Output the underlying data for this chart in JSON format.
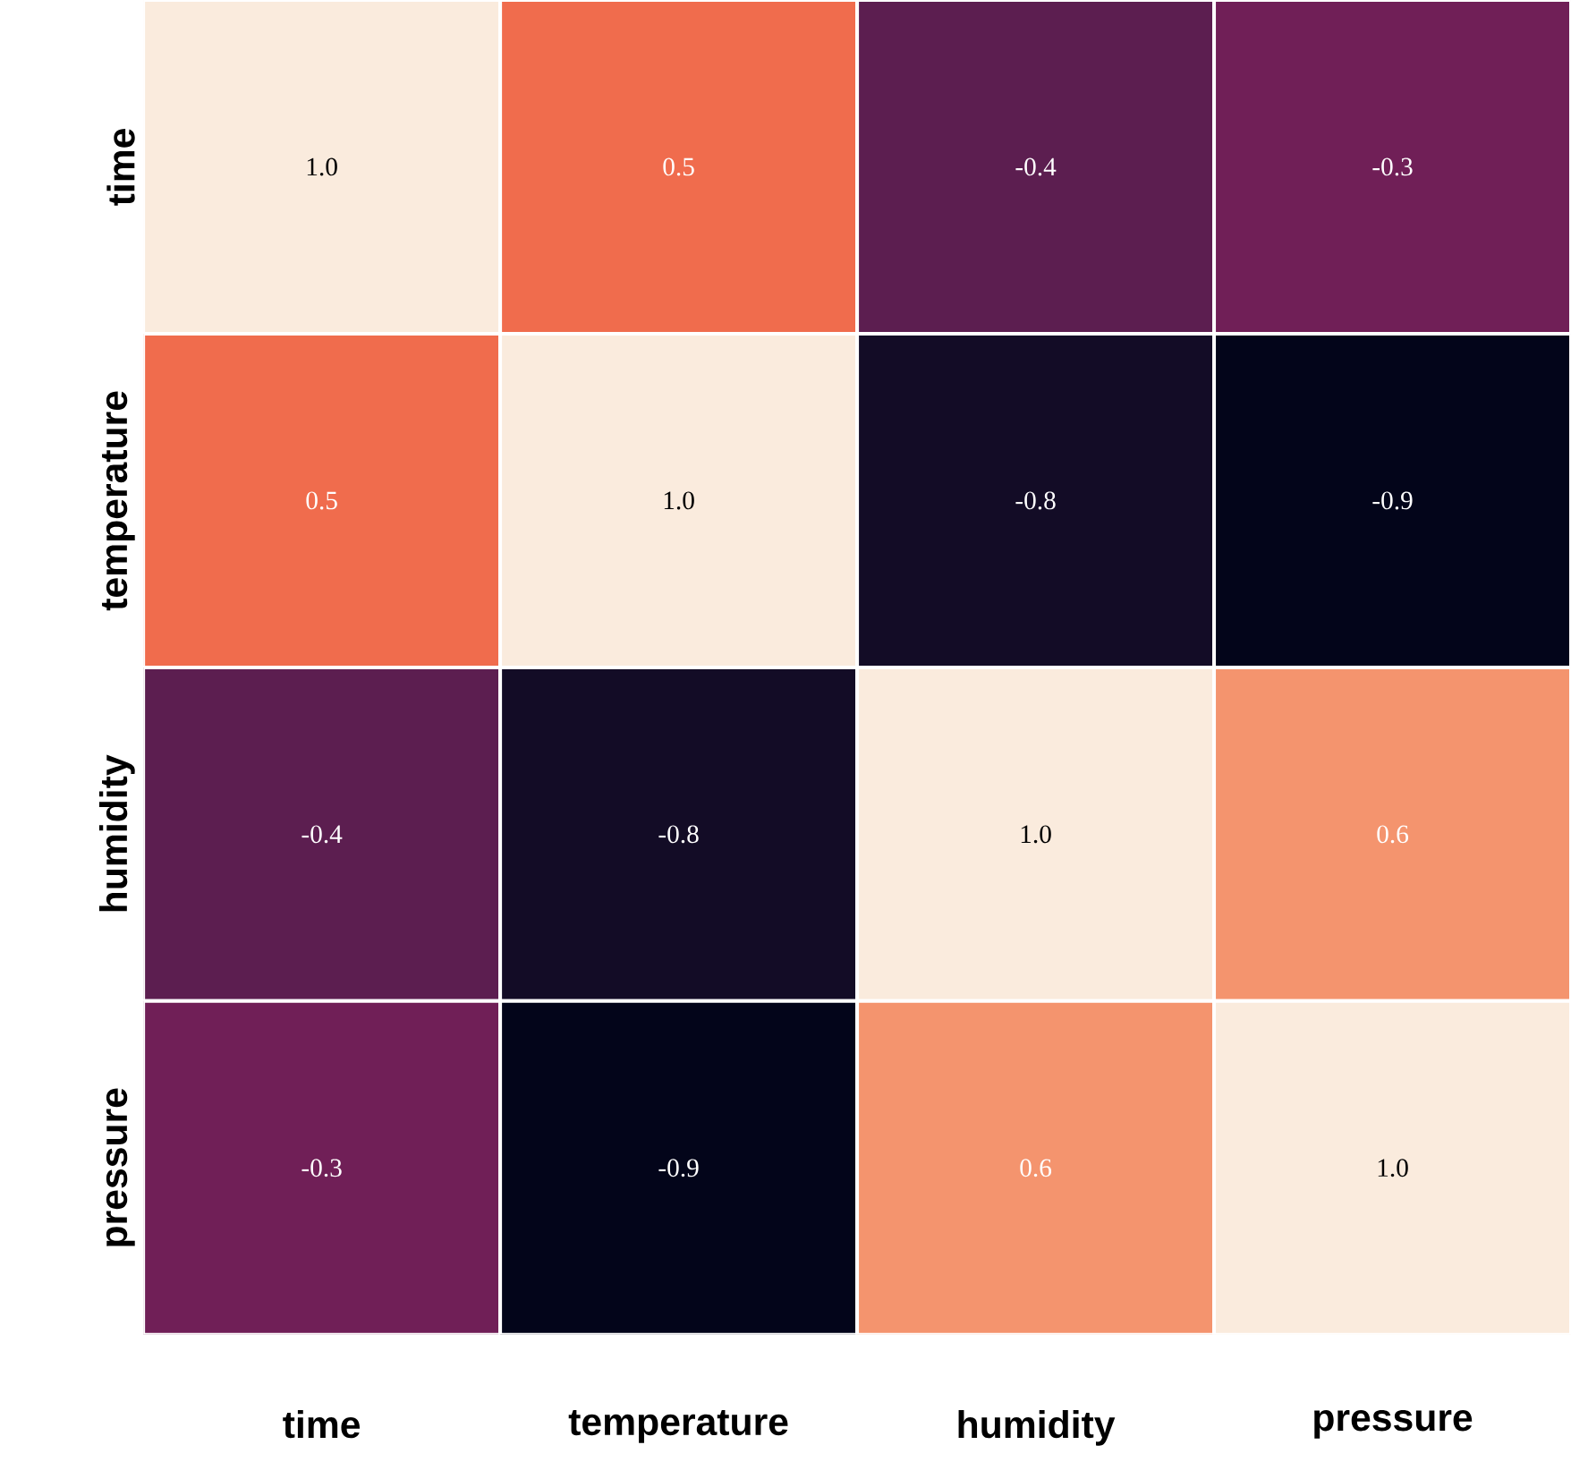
{
  "chart_data": {
    "type": "heatmap",
    "categories": [
      "time",
      "temperature",
      "humidity",
      "pressure"
    ],
    "y_categories": [
      "time",
      "temperature",
      "humidity",
      "pressure"
    ],
    "cells": [
      [
        1.0,
        0.5,
        -0.4,
        -0.3
      ],
      [
        0.5,
        1.0,
        -0.8,
        -0.9
      ],
      [
        -0.4,
        -0.8,
        1.0,
        0.6
      ],
      [
        -0.3,
        -0.9,
        0.6,
        1.0
      ]
    ],
    "cell_labels": [
      [
        "1.0",
        "0.5",
        "-0.4",
        "-0.3"
      ],
      [
        "0.5",
        "1.0",
        "-0.8",
        "-0.9"
      ],
      [
        "-0.4",
        "-0.8",
        "1.0",
        "0.6"
      ],
      [
        "-0.3",
        "-0.9",
        "0.6",
        "1.0"
      ]
    ]
  }
}
